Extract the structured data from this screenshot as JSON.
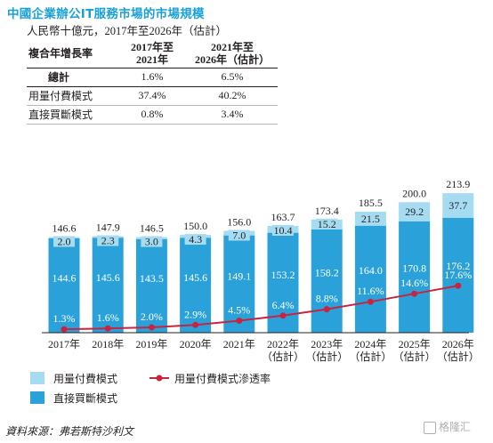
{
  "header": {
    "title": "中國企業辦公IT服務市場的市場規模",
    "subtitle": "人民幣十億元，2017年至2026年（估計）"
  },
  "cagr_table": {
    "row_header": "複合年增長率",
    "col_headers": [
      [
        "2017年至",
        "2021年"
      ],
      [
        "2021年至",
        "2026年（估計）"
      ]
    ],
    "rows": [
      {
        "label": "總計",
        "values": [
          "1.6%",
          "6.5%"
        ]
      },
      {
        "label": "用量付費模式",
        "values": [
          "37.4%",
          "40.2%"
        ]
      },
      {
        "label": "直接買斷模式",
        "values": [
          "0.8%",
          "3.4%"
        ]
      }
    ]
  },
  "colors": {
    "title": "#1aa0d8",
    "subscription": "#a6dcf2",
    "buyout": "#2aa2d9",
    "rate_line": "#c8243f"
  },
  "chart_data": {
    "type": "bar",
    "stacked": true,
    "categories": [
      [
        "2017年"
      ],
      [
        "2018年"
      ],
      [
        "2019年"
      ],
      [
        "2020年"
      ],
      [
        "2021年"
      ],
      [
        "2022年",
        "（估計）"
      ],
      [
        "2023年",
        "（估計）"
      ],
      [
        "2024年",
        "（估計）"
      ],
      [
        "2025年",
        "（估計）"
      ],
      [
        "2026年",
        "（估計）"
      ]
    ],
    "series": [
      {
        "name": "直接買斷模式",
        "values": [
          144.6,
          145.6,
          143.5,
          145.6,
          149.1,
          153.2,
          158.2,
          164.0,
          170.8,
          176.2
        ]
      },
      {
        "name": "用量付費模式",
        "values": [
          2.0,
          2.3,
          3.0,
          4.3,
          7.0,
          10.4,
          15.2,
          21.5,
          29.2,
          37.7
        ]
      }
    ],
    "totals": [
      146.6,
      147.9,
      146.5,
      150.0,
      156.0,
      163.7,
      173.4,
      185.5,
      200.0,
      213.9
    ],
    "line": {
      "name": "用量付費模式滲透率",
      "values": [
        1.3,
        1.6,
        2.0,
        2.9,
        4.5,
        6.4,
        8.8,
        11.6,
        14.6,
        17.6
      ],
      "labels": [
        "1.3%",
        "1.6%",
        "2.0%",
        "2.9%",
        "4.5%",
        "6.4%",
        "8.8%",
        "11.6%",
        "14.6%",
        "17.6%"
      ]
    },
    "legend": [
      "用量付費模式",
      "直接買斷模式",
      "用量付費模式滲透率"
    ]
  },
  "footer": {
    "source": "資料來源：弗若斯特沙利文",
    "watermark": "格隆汇"
  }
}
